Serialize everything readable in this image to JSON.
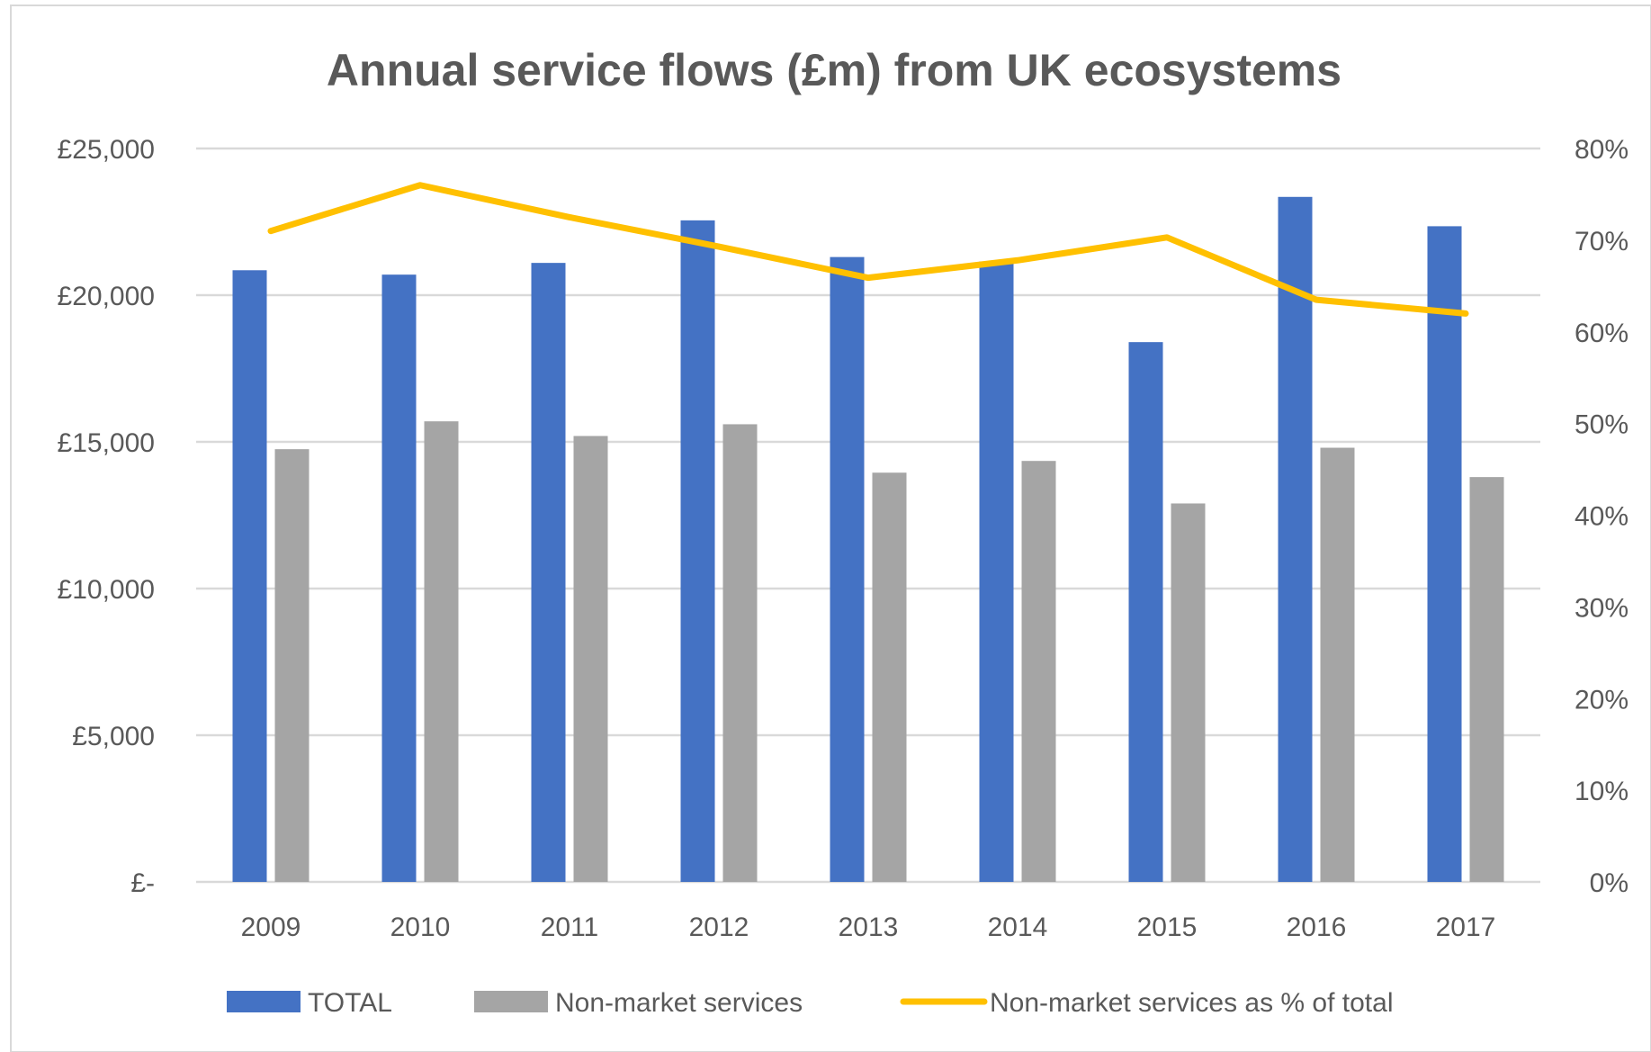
{
  "chart_data": {
    "type": "bar",
    "title": "Annual service flows (£m) from UK ecosystems",
    "categories": [
      "2009",
      "2010",
      "2011",
      "2012",
      "2013",
      "2014",
      "2015",
      "2016",
      "2017"
    ],
    "series": [
      {
        "name": "TOTAL",
        "type": "bar",
        "axis": "left",
        "color": "#4472C4",
        "values": [
          20850,
          20700,
          21100,
          22550,
          21300,
          21150,
          18400,
          23350,
          22350
        ]
      },
      {
        "name": "Non-market services",
        "type": "bar",
        "axis": "left",
        "color": "#A5A5A5",
        "values": [
          14750,
          15700,
          15200,
          15600,
          13950,
          14350,
          12900,
          14800,
          13800
        ]
      },
      {
        "name": "Non-market services as % of total",
        "type": "line",
        "axis": "right",
        "color": "#FFC000",
        "values": [
          71,
          76,
          72.5,
          69.3,
          65.9,
          67.8,
          70.3,
          63.5,
          62
        ]
      }
    ],
    "y_left": {
      "min": 0,
      "max": 25000,
      "ticks": [
        0,
        5000,
        10000,
        15000,
        20000,
        25000
      ],
      "tick_labels": [
        "£-",
        "£5,000",
        "£10,000",
        "£15,000",
        "£20,000",
        "£25,000"
      ]
    },
    "y_right": {
      "min": 0,
      "max": 80,
      "ticks": [
        0,
        10,
        20,
        30,
        40,
        50,
        60,
        70,
        80
      ],
      "tick_labels": [
        "0%",
        "10%",
        "20%",
        "30%",
        "40%",
        "50%",
        "60%",
        "70%",
        "80%"
      ]
    },
    "grid": true,
    "legend_position": "bottom",
    "colors": {
      "title": "#595959",
      "axis_text": "#595959",
      "grid": "#D9D9D9"
    }
  }
}
